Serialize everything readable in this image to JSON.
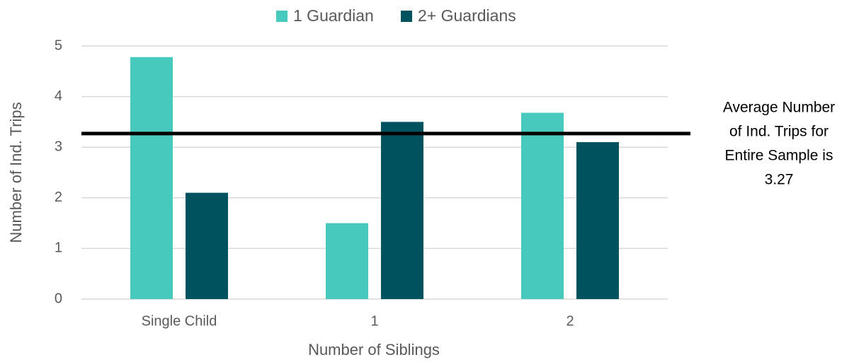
{
  "chart_data": {
    "type": "bar",
    "categories": [
      "Single Child",
      "1",
      "2"
    ],
    "series": [
      {
        "name": "1 Guardian",
        "color": "#48c9be",
        "values": [
          4.78,
          1.5,
          3.68
        ]
      },
      {
        "name": "2+ Guardians",
        "color": "#00535e",
        "values": [
          2.1,
          3.5,
          3.1
        ]
      }
    ],
    "x_label": "Number of Siblings",
    "y_label": "Number of Ind. Trips",
    "ylim": [
      0,
      5
    ],
    "yticks": [
      0,
      1,
      2,
      3,
      4,
      5
    ],
    "grid": true,
    "legend": "top",
    "reference_line": {
      "value": 3.27,
      "color": "#000000"
    },
    "annotation": [
      "Average Number",
      "of Ind. Trips for",
      "Entire Sample is",
      "3.27"
    ]
  }
}
